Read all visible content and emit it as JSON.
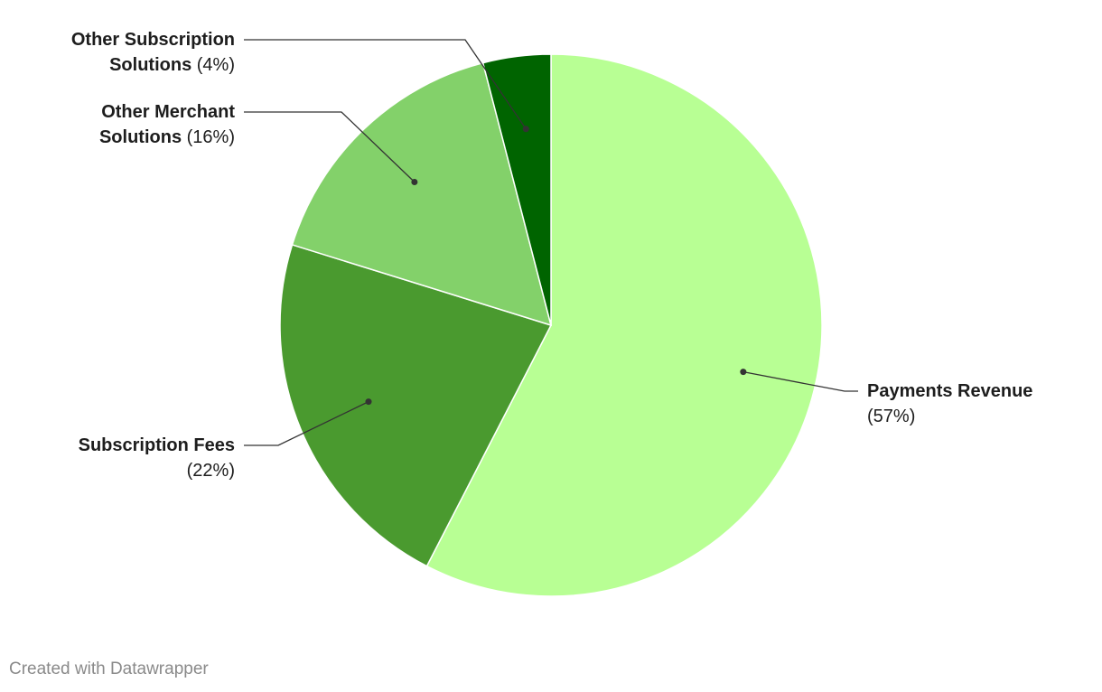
{
  "chart_data": {
    "type": "pie",
    "categories": [
      "Payments Revenue",
      "Subscription Fees",
      "Other Merchant Solutions",
      "Other Subscription Solutions"
    ],
    "values": [
      57,
      22,
      16,
      4
    ],
    "value_labels": [
      "(57%)",
      "(22%)",
      "(16%)",
      "(4%)"
    ],
    "colors": [
      "#b8ff94",
      "#4a9a2f",
      "#83d16a",
      "#006400"
    ],
    "footer": "Created with Datawrapper"
  }
}
